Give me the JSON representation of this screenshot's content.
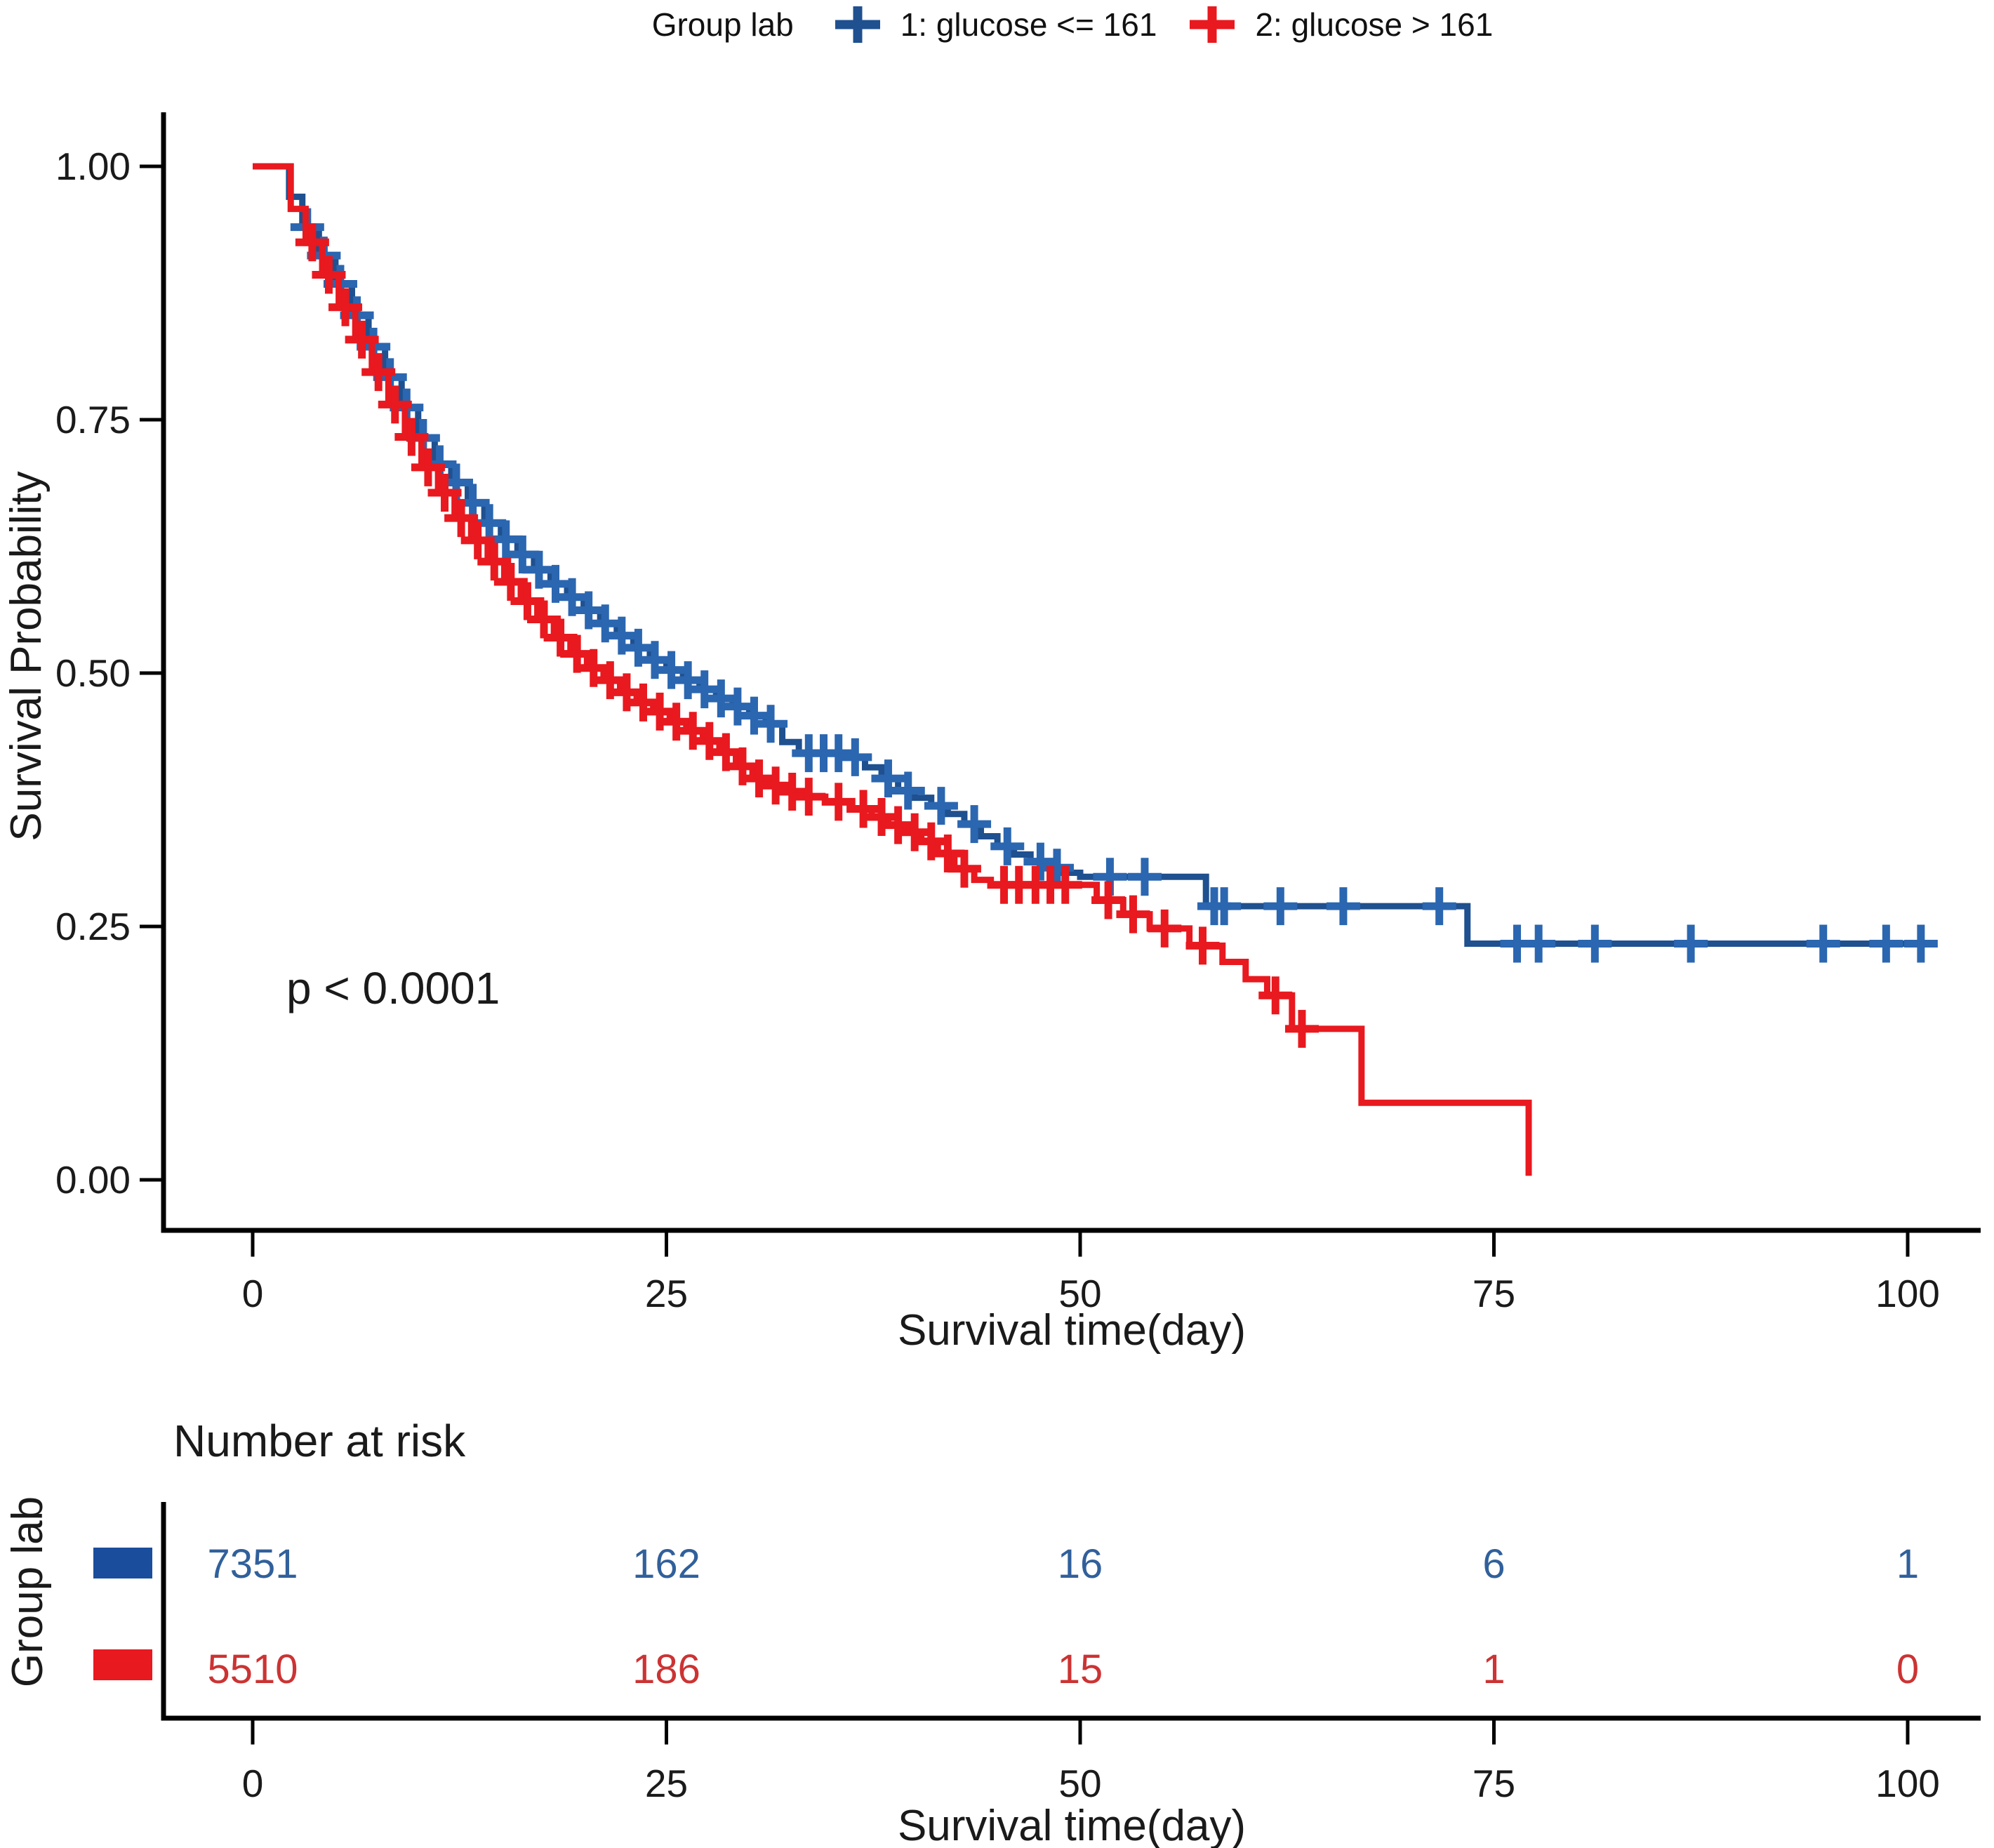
{
  "legend": {
    "title": "Group lab",
    "items": [
      {
        "label": "1: glucose <= 161"
      },
      {
        "label": "2: glucose > 161"
      }
    ]
  },
  "annotations": {
    "p_value": "p < 0.0001"
  },
  "chart_data": {
    "type": "line",
    "subtype": "kaplan-meier-step",
    "title": "",
    "xlabel": "Survival time(day)",
    "ylabel": "Survival Probability",
    "xlim": [
      -5,
      105
    ],
    "ylim": [
      0,
      1
    ],
    "grid": false,
    "legend_position": "top",
    "legend_title": "Group lab",
    "xticks": [
      0,
      25,
      50,
      75,
      100
    ],
    "xtick_labels": [
      "0",
      "25",
      "50",
      "75",
      "100"
    ],
    "yticks": [
      1.0,
      0.75,
      0.5,
      0.25,
      0.0
    ],
    "ytick_labels": [
      "1.00",
      "0.75",
      "0.50",
      "0.25",
      "0.00"
    ],
    "pvalue_text": "p < 0.0001",
    "series": [
      {
        "name": "1: glucose <= 161",
        "color": "#1f508f",
        "censor_color": "#2b66b0",
        "steps": [
          [
            0,
            1.0
          ],
          [
            2.2,
            0.97
          ],
          [
            3,
            0.94
          ],
          [
            4,
            0.912
          ],
          [
            5,
            0.884
          ],
          [
            6,
            0.853
          ],
          [
            7,
            0.822
          ],
          [
            8,
            0.792
          ],
          [
            9,
            0.762
          ],
          [
            10,
            0.732
          ],
          [
            11,
            0.706
          ],
          [
            12,
            0.688
          ],
          [
            13,
            0.668
          ],
          [
            14,
            0.648
          ],
          [
            15,
            0.632
          ],
          [
            16,
            0.617
          ],
          [
            17,
            0.602
          ],
          [
            18,
            0.588
          ],
          [
            19,
            0.575
          ],
          [
            20,
            0.562
          ],
          [
            21,
            0.549
          ],
          [
            22,
            0.537
          ],
          [
            23,
            0.525
          ],
          [
            24,
            0.513
          ],
          [
            25,
            0.503
          ],
          [
            26,
            0.493
          ],
          [
            27,
            0.484
          ],
          [
            28,
            0.475
          ],
          [
            29,
            0.467
          ],
          [
            30,
            0.458
          ],
          [
            31,
            0.45
          ],
          [
            32,
            0.432
          ],
          [
            33,
            0.421
          ],
          [
            36,
            0.417
          ],
          [
            37,
            0.407
          ],
          [
            38,
            0.396
          ],
          [
            39,
            0.384
          ],
          [
            40,
            0.377
          ],
          [
            41,
            0.369
          ],
          [
            42,
            0.361
          ],
          [
            43,
            0.351
          ],
          [
            44,
            0.339
          ],
          [
            45,
            0.329
          ],
          [
            46,
            0.321
          ],
          [
            47,
            0.314
          ],
          [
            48,
            0.308
          ],
          [
            49,
            0.303
          ],
          [
            50,
            0.299
          ],
          [
            57.6,
            0.27
          ],
          [
            73.4,
            0.233
          ]
        ],
        "end_time": 101.6,
        "censors": [
          [
            3.3,
            0.94
          ],
          [
            4.3,
            0.912
          ],
          [
            5.3,
            0.884
          ],
          [
            6.3,
            0.853
          ],
          [
            7.3,
            0.822
          ],
          [
            8.3,
            0.792
          ],
          [
            9.3,
            0.762
          ],
          [
            10.3,
            0.732
          ],
          [
            11.3,
            0.706
          ],
          [
            12.3,
            0.688
          ],
          [
            13.3,
            0.668
          ],
          [
            14.3,
            0.648
          ],
          [
            15.3,
            0.632
          ],
          [
            16.3,
            0.617
          ],
          [
            17.3,
            0.602
          ],
          [
            18.3,
            0.588
          ],
          [
            19.3,
            0.575
          ],
          [
            20.3,
            0.562
          ],
          [
            21.3,
            0.549
          ],
          [
            22.3,
            0.537
          ],
          [
            23.3,
            0.525
          ],
          [
            24.3,
            0.513
          ],
          [
            25.3,
            0.503
          ],
          [
            26.3,
            0.493
          ],
          [
            27.3,
            0.484
          ],
          [
            28.3,
            0.475
          ],
          [
            29.3,
            0.467
          ],
          [
            30.3,
            0.458
          ],
          [
            31.3,
            0.45
          ],
          [
            33.6,
            0.421
          ],
          [
            34.5,
            0.421
          ],
          [
            35.4,
            0.421
          ],
          [
            36.4,
            0.417
          ],
          [
            38.4,
            0.396
          ],
          [
            39.6,
            0.384
          ],
          [
            41.6,
            0.369
          ],
          [
            43.6,
            0.351
          ],
          [
            45.6,
            0.329
          ],
          [
            47.6,
            0.314
          ],
          [
            48.6,
            0.308
          ],
          [
            51.8,
            0.299
          ],
          [
            53.9,
            0.299
          ],
          [
            58.1,
            0.27
          ],
          [
            58.7,
            0.27
          ],
          [
            62.1,
            0.27
          ],
          [
            65.9,
            0.27
          ],
          [
            71.7,
            0.27
          ],
          [
            76.4,
            0.233
          ],
          [
            77.7,
            0.233
          ],
          [
            81.1,
            0.233
          ],
          [
            86.9,
            0.233
          ],
          [
            94.9,
            0.233
          ],
          [
            98.7,
            0.233
          ],
          [
            100.8,
            0.233
          ]
        ]
      },
      {
        "name": "2: glucose > 161",
        "color": "#e8191f",
        "censor_color": "#e8191f",
        "steps": [
          [
            0,
            1.0
          ],
          [
            2.3,
            0.958
          ],
          [
            3.2,
            0.925
          ],
          [
            4.2,
            0.893
          ],
          [
            5.2,
            0.861
          ],
          [
            6.2,
            0.829
          ],
          [
            7.2,
            0.797
          ],
          [
            8.2,
            0.765
          ],
          [
            9.2,
            0.733
          ],
          [
            10.2,
            0.703
          ],
          [
            11.2,
            0.678
          ],
          [
            12.2,
            0.653
          ],
          [
            13.2,
            0.631
          ],
          [
            14.2,
            0.61
          ],
          [
            15.2,
            0.59
          ],
          [
            16.2,
            0.571
          ],
          [
            17.2,
            0.553
          ],
          [
            18.2,
            0.535
          ],
          [
            19.2,
            0.519
          ],
          [
            20.2,
            0.505
          ],
          [
            21.2,
            0.493
          ],
          [
            22.2,
            0.481
          ],
          [
            23.2,
            0.471
          ],
          [
            24.2,
            0.462
          ],
          [
            25.2,
            0.452
          ],
          [
            26.2,
            0.443
          ],
          [
            27.2,
            0.433
          ],
          [
            28.2,
            0.422
          ],
          [
            29.2,
            0.408
          ],
          [
            30.2,
            0.396
          ],
          [
            31.2,
            0.389
          ],
          [
            32.2,
            0.383
          ],
          [
            33.2,
            0.378
          ],
          [
            34.6,
            0.373
          ],
          [
            36.2,
            0.366
          ],
          [
            37.4,
            0.358
          ],
          [
            38.4,
            0.35
          ],
          [
            39.4,
            0.343
          ],
          [
            40.4,
            0.334
          ],
          [
            41.4,
            0.322
          ],
          [
            42.4,
            0.307
          ],
          [
            43.6,
            0.296
          ],
          [
            44.6,
            0.291
          ],
          [
            51,
            0.276
          ],
          [
            52.6,
            0.262
          ],
          [
            54.2,
            0.248
          ],
          [
            56.6,
            0.231
          ],
          [
            58.6,
            0.215
          ],
          [
            60,
            0.198
          ],
          [
            61.3,
            0.182
          ],
          [
            62.8,
            0.149
          ],
          [
            67,
            0.076
          ],
          [
            77.1,
            0.004
          ]
        ],
        "end_time": 77.1,
        "censors": [
          [
            3.6,
            0.925
          ],
          [
            4.6,
            0.893
          ],
          [
            5.6,
            0.861
          ],
          [
            6.6,
            0.829
          ],
          [
            7.6,
            0.797
          ],
          [
            8.6,
            0.765
          ],
          [
            9.6,
            0.733
          ],
          [
            10.6,
            0.703
          ],
          [
            11.6,
            0.678
          ],
          [
            12.6,
            0.653
          ],
          [
            13.6,
            0.631
          ],
          [
            14.6,
            0.61
          ],
          [
            15.6,
            0.59
          ],
          [
            16.6,
            0.571
          ],
          [
            17.6,
            0.553
          ],
          [
            18.6,
            0.535
          ],
          [
            19.6,
            0.519
          ],
          [
            20.6,
            0.505
          ],
          [
            21.6,
            0.493
          ],
          [
            22.6,
            0.481
          ],
          [
            23.6,
            0.471
          ],
          [
            24.6,
            0.462
          ],
          [
            25.6,
            0.452
          ],
          [
            26.6,
            0.443
          ],
          [
            27.6,
            0.433
          ],
          [
            28.6,
            0.422
          ],
          [
            29.6,
            0.408
          ],
          [
            30.6,
            0.396
          ],
          [
            31.6,
            0.389
          ],
          [
            32.6,
            0.383
          ],
          [
            33.6,
            0.378
          ],
          [
            35.4,
            0.373
          ],
          [
            36.9,
            0.366
          ],
          [
            38,
            0.358
          ],
          [
            39,
            0.35
          ],
          [
            40,
            0.343
          ],
          [
            41,
            0.334
          ],
          [
            42,
            0.322
          ],
          [
            43,
            0.307
          ],
          [
            45.4,
            0.291
          ],
          [
            46.3,
            0.291
          ],
          [
            47.3,
            0.291
          ],
          [
            48.2,
            0.291
          ],
          [
            49.1,
            0.291
          ],
          [
            51.7,
            0.276
          ],
          [
            53.2,
            0.262
          ],
          [
            55.1,
            0.248
          ],
          [
            57.4,
            0.231
          ],
          [
            61.8,
            0.182
          ],
          [
            63.4,
            0.149
          ]
        ]
      }
    ]
  },
  "risk_table": {
    "title": "Number at risk",
    "group_axis_label": "Group lab",
    "xlabel": "Survival time(day)",
    "times": [
      0,
      25,
      50,
      75,
      100
    ],
    "time_labels": [
      "0",
      "25",
      "50",
      "75",
      "100"
    ],
    "rows": [
      {
        "name": "1: glucose <= 161",
        "swatch_color": "#1a4e9c",
        "text_color": "#31609b",
        "counts": [
          "7351",
          "162",
          "16",
          "6",
          "1"
        ]
      },
      {
        "name": "2: glucose > 161",
        "swatch_color": "#e8191f",
        "text_color": "#cc3333",
        "counts": [
          "5510",
          "186",
          "15",
          "1",
          "0"
        ]
      }
    ]
  }
}
